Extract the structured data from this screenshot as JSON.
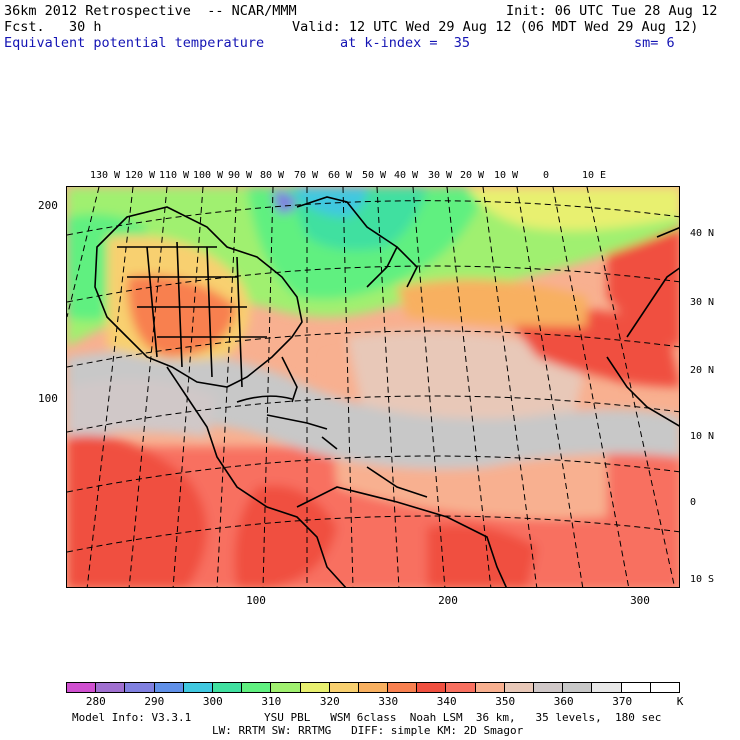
{
  "header": {
    "model": "36km 2012 Retrospective  -- NCAR/MMM",
    "init": "Init: 06 UTC Tue 28 Aug 12",
    "fcst": "Fcst.   30 h",
    "valid": "Valid: 12 UTC Wed 29 Aug 12 (06 MDT Wed 29 Aug 12)",
    "field": "Equivalent potential temperature",
    "kindex": "at k-index =  35",
    "sm": "sm= 6"
  },
  "map": {
    "lon_labels": [
      "130 W",
      "120 W",
      "110 W",
      "100 W",
      "90 W",
      "80 W",
      "70 W",
      "60 W",
      "50 W",
      "40 W",
      "30 W",
      "20 W",
      "10 W",
      "0",
      "10 E"
    ],
    "lat_labels": [
      "40 N",
      "30 N",
      "20 N",
      "10 N",
      "0",
      "10 S"
    ],
    "x_axis_ticks": [
      "100",
      "200",
      "300"
    ],
    "y_axis_ticks": [
      "200",
      "100"
    ]
  },
  "colorbar": {
    "colors": [
      "#d050d0",
      "#a070d0",
      "#8080e0",
      "#6090e8",
      "#40c8e0",
      "#40e0a0",
      "#60f080",
      "#a0f070",
      "#e8f070",
      "#f8d070",
      "#f8b060",
      "#f88050",
      "#f05040",
      "#f87060",
      "#f8b090",
      "#e8c8b8",
      "#d0c8c8",
      "#c8c8c8",
      "#e8e8e8",
      "#ffffff",
      "#ffffff"
    ],
    "labels": [
      "280",
      "290",
      "300",
      "310",
      "320",
      "330",
      "340",
      "350",
      "360",
      "370",
      "K"
    ]
  },
  "footer": {
    "line1_left": "Model Info: V3.3.1",
    "line1_right": "YSU PBL   WSM 6class  Noah LSM  36 km,   35 levels,  180 sec",
    "line2": "LW: RRTM SW: RRTMG   DIFF: simple KM: 2D Smagor"
  }
}
